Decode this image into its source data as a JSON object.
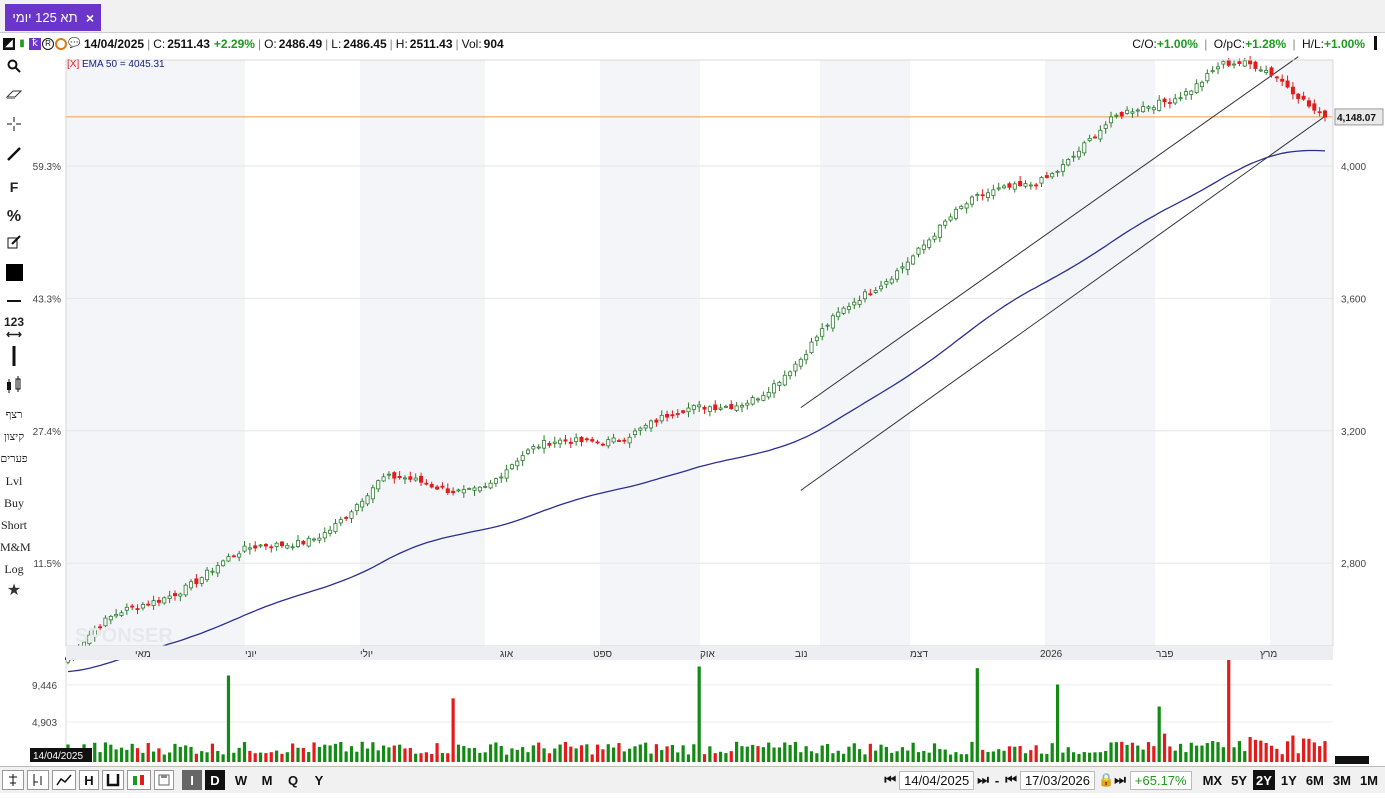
{
  "tab": {
    "title": "תא 125 יומי",
    "close": "×"
  },
  "info": {
    "date": "14/04/2025",
    "c_label": "C:",
    "c_value": "2511.43",
    "c_change": "+2.29%",
    "o_label": "O:",
    "o_value": "2486.49",
    "l_label": "L:",
    "l_value": "2486.45",
    "h_label": "H:",
    "h_value": "2511.43",
    "vol_label": "Vol:",
    "vol_value": "904",
    "co_label": "C/O:",
    "co_value": "+1.00%",
    "opc_label": "O/pC:",
    "opc_value": "+1.28%",
    "hl_label": "H/L:",
    "hl_value": "+1.00%"
  },
  "toolbar": {
    "items": [
      {
        "icon": "search-icon"
      },
      {
        "icon": "eraser-icon"
      },
      {
        "icon": "crosshair-icon"
      },
      {
        "icon": "line-icon"
      },
      {
        "label": "F"
      },
      {
        "label": "%"
      },
      {
        "icon": "edit-icon"
      },
      {
        "icon": "color-box-icon"
      },
      {
        "icon": "hline-icon"
      },
      {
        "label": "123"
      },
      {
        "icon": "vline-icon"
      },
      {
        "icon": "candles-icon"
      }
    ],
    "text_items": [
      "רצף",
      "קיצון",
      "פערים",
      "Lvl",
      "Buy",
      "Short",
      "M&M",
      "Log"
    ]
  },
  "chart": {
    "indicator_label": "EMA 50 = 4045.31",
    "indicator_tag": "[X]",
    "left_pct_labels": [
      "59.3%",
      "43.3%",
      "27.4%",
      "11.5%"
    ],
    "right_price_labels": [
      "4,000",
      "3,600",
      "3,200",
      "2,800"
    ],
    "last_price": "4,148.07",
    "month_labels": [
      "מאי",
      "יוני",
      "יולי",
      "אוג",
      "ספט",
      "אוק",
      "נוב",
      "דצמ",
      "2026",
      "פבר",
      "מרץ"
    ],
    "volume_labels": [
      "9,446",
      "4,903"
    ],
    "date_tag": "14/04/2025",
    "watermark": "SPONSER"
  },
  "chart_data": {
    "type": "candlestick",
    "title": "",
    "x_range": [
      "14/04/2025",
      "17/03/2026"
    ],
    "y_right_ticks": [
      2800,
      3200,
      3600,
      4000
    ],
    "y_left_ticks_pct": [
      11.5,
      27.4,
      43.3,
      59.3
    ],
    "ylim": [
      2550,
      4320
    ],
    "ema50_last": 4045.31,
    "horizontal_line": 4148.07,
    "approx_close_path": [
      {
        "date": "14/04/2025",
        "close": 2511
      },
      {
        "date": "05/2025",
        "close": 2700
      },
      {
        "date": "06/2025",
        "close": 2860
      },
      {
        "date": "07/2025",
        "close": 3060
      },
      {
        "date": "08/2025",
        "close": 3020
      },
      {
        "date": "09/2025",
        "close": 3170
      },
      {
        "date": "10/2025",
        "close": 3280
      },
      {
        "date": "11/2025",
        "close": 3410
      },
      {
        "date": "12/2025",
        "close": 3700
      },
      {
        "date": "01/2026",
        "close": 3950
      },
      {
        "date": "02/2026",
        "close": 4150
      },
      {
        "date": "03/2026",
        "close": 4290
      },
      {
        "date": "17/03/2026",
        "close": 4148
      }
    ],
    "volume_ticks": [
      4903,
      9446
    ]
  },
  "bottom": {
    "buttons": [
      "I",
      "D",
      "W",
      "M",
      "Q",
      "Y"
    ],
    "selected": "D",
    "from_date": "14/04/2025",
    "dash": "-",
    "to_date": "17/03/2026",
    "change": "+65.17%",
    "ranges": [
      "MX",
      "5Y",
      "2Y",
      "1Y",
      "6M",
      "3M",
      "1M"
    ],
    "selected_range": "2Y"
  }
}
